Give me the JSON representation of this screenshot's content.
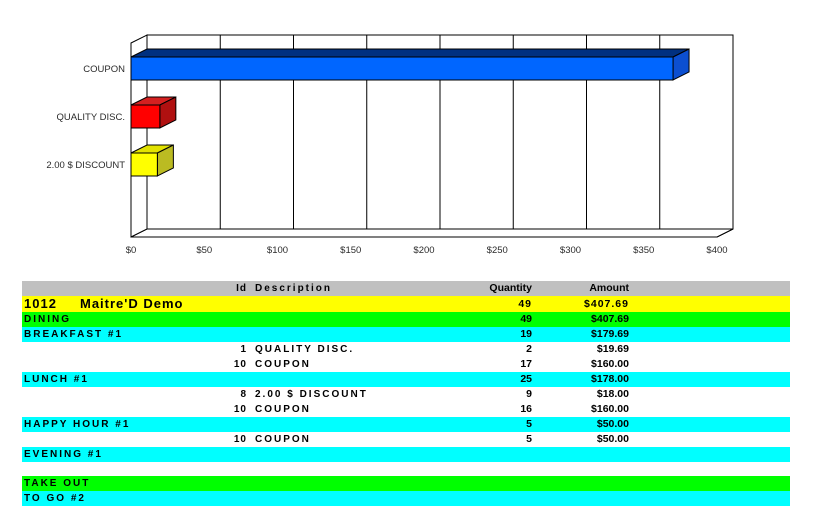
{
  "chart_data": {
    "type": "bar",
    "orientation": "horizontal",
    "title": "",
    "xlabel": "",
    "ylabel": "",
    "categories": [
      "COUPON",
      "QUALITY DISC.",
      "2.00 $ DISCOUNT"
    ],
    "values": [
      370,
      19.69,
      18
    ],
    "xlim": [
      0,
      400
    ],
    "x_tick_labels": [
      "$0",
      "$50",
      "$100",
      "$150",
      "$200",
      "$250",
      "$300",
      "$350",
      "$400"
    ],
    "grid": true,
    "legend": false,
    "style": "3d-horizontal-bars",
    "bar_colors": [
      {
        "front": "#0066FF",
        "top": "#003080",
        "side": "#0C4FD0"
      },
      {
        "front": "#FF0000",
        "top": "#D42020",
        "side": "#B01010"
      },
      {
        "front": "#FFFF00",
        "top": "#E2E200",
        "side": "#BBBB22"
      }
    ]
  },
  "report": {
    "header": {
      "id": "Id",
      "description": "Description",
      "quantity": "Quantity",
      "amount": "Amount"
    },
    "rows": [
      {
        "style": "title",
        "bg": "#FFFF00",
        "id": "1012",
        "description": "Maitre'D Demo",
        "quantity": "49",
        "amount": "$407.69"
      },
      {
        "style": "group",
        "bg": "#00FF00",
        "description": "DINING",
        "quantity": "49",
        "amount": "$407.69"
      },
      {
        "style": "group",
        "bg": "#00FFFF",
        "description": "BREAKFAST #1",
        "quantity": "19",
        "amount": "$179.69"
      },
      {
        "style": "detail",
        "bg": "#FFFFFF",
        "id": "1",
        "description": "QUALITY DISC.",
        "quantity": "2",
        "amount": "$19.69"
      },
      {
        "style": "detail",
        "bg": "#FFFFFF",
        "id": "10",
        "description": "COUPON",
        "quantity": "17",
        "amount": "$160.00"
      },
      {
        "style": "group",
        "bg": "#00FFFF",
        "description": "LUNCH #1",
        "quantity": "25",
        "amount": "$178.00"
      },
      {
        "style": "detail",
        "bg": "#FFFFFF",
        "id": "8",
        "description": "2.00 $ DISCOUNT",
        "quantity": "9",
        "amount": "$18.00"
      },
      {
        "style": "detail",
        "bg": "#FFFFFF",
        "id": "10",
        "description": "COUPON",
        "quantity": "16",
        "amount": "$160.00"
      },
      {
        "style": "group",
        "bg": "#00FFFF",
        "description": "HAPPY HOUR #1",
        "quantity": "5",
        "amount": "$50.00"
      },
      {
        "style": "detail",
        "bg": "#FFFFFF",
        "id": "10",
        "description": "COUPON",
        "quantity": "5",
        "amount": "$50.00"
      },
      {
        "style": "group",
        "bg": "#00FFFF",
        "description": "EVENING #1",
        "quantity": "",
        "amount": ""
      },
      {
        "style": "spacer"
      },
      {
        "style": "group",
        "bg": "#00FF00",
        "description": "TAKE OUT",
        "quantity": "",
        "amount": ""
      },
      {
        "style": "group",
        "bg": "#00FFFF",
        "description": "TO GO #2",
        "quantity": "",
        "amount": ""
      }
    ],
    "colors": {
      "header_gray": "#C0C0C0",
      "title_yellow": "#FFFF00",
      "group_green": "#00FF00",
      "group_cyan": "#00FFFF"
    }
  }
}
